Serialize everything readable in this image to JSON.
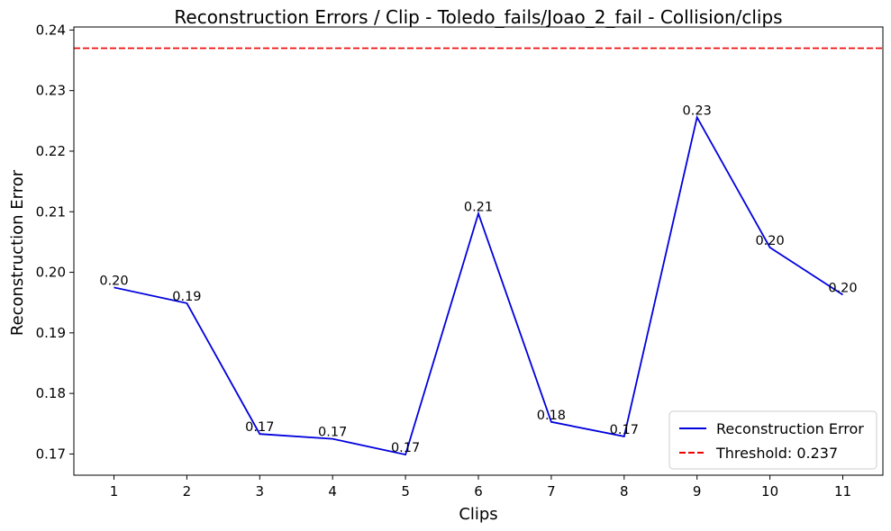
{
  "chart_data": {
    "type": "line",
    "title": "Reconstruction Errors / Clip - Toledo_fails/Joao_2_fail - Collision/clips",
    "xlabel": "Clips",
    "ylabel": "Reconstruction Error",
    "x": [
      1,
      2,
      3,
      4,
      5,
      6,
      7,
      8,
      9,
      10,
      11
    ],
    "xlim": [
      0.45,
      11.55
    ],
    "ylim": [
      0.1665,
      0.2405
    ],
    "yticks": [
      0.17,
      0.18,
      0.19,
      0.2,
      0.21,
      0.22,
      0.23,
      0.24
    ],
    "ytick_labels": [
      "0.17",
      "0.18",
      "0.19",
      "0.20",
      "0.21",
      "0.22",
      "0.23",
      "0.24"
    ],
    "grid": false,
    "legend_position": "bottom-right",
    "series": [
      {
        "name": "Reconstruction Error",
        "color": "#0000dd",
        "values": [
          0.1975,
          0.1949,
          0.1733,
          0.1725,
          0.1699,
          0.2097,
          0.1753,
          0.1729,
          0.2256,
          0.2041,
          0.1963
        ],
        "labels": [
          "0.20",
          "0.19",
          "0.17",
          "0.17",
          "0.17",
          "0.21",
          "0.18",
          "0.17",
          "0.23",
          "0.20",
          "0.20"
        ]
      }
    ],
    "threshold": {
      "name": "Threshold: 0.237",
      "value": 0.237,
      "color": "#ee0000"
    }
  }
}
